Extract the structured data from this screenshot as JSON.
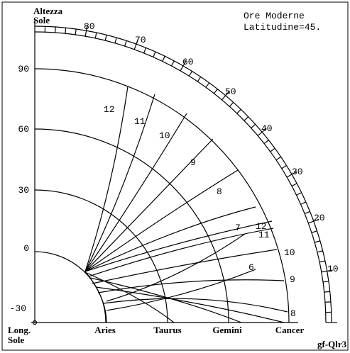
{
  "axis_title": {
    "line1": "Altezza",
    "line2": "Sole"
  },
  "info": {
    "line1": "Ore Moderne",
    "line2": "Latitudine=45."
  },
  "scale_labels": [
    "80",
    "70",
    "60",
    "50",
    "40",
    "30",
    "20",
    "10"
  ],
  "left_labels": [
    "90",
    "60",
    "30",
    "0",
    "-30"
  ],
  "bottom_title": {
    "line1": "Long.",
    "line2": "Sole"
  },
  "signs": [
    "Aries",
    "Taurus",
    "Gemini",
    "Cancer"
  ],
  "hour_labels": [
    "12",
    "11",
    "10",
    "9",
    "8",
    "7",
    "12",
    "11",
    "10",
    "6",
    "9",
    "8"
  ],
  "credit": "gf-Qlr3"
}
